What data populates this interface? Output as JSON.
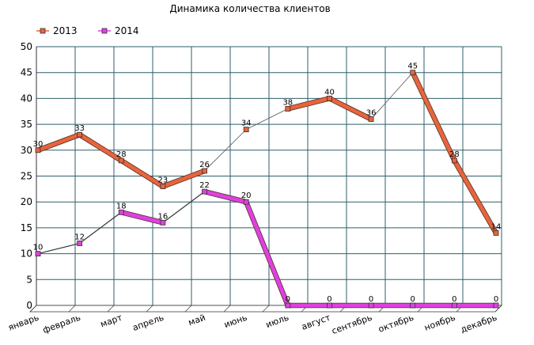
{
  "chart_data": {
    "type": "line",
    "title": "Динамика количества клиентов",
    "xlabel": "",
    "ylabel": "",
    "categories": [
      "январь",
      "февраль",
      "март",
      "апрель",
      "май",
      "июнь",
      "июль",
      "август",
      "сентябрь",
      "октябрь",
      "ноябрь",
      "декабрь"
    ],
    "ylim": [
      0,
      50
    ],
    "yticks": [
      0,
      5,
      10,
      15,
      20,
      25,
      30,
      35,
      40,
      45,
      50
    ],
    "grid": true,
    "legend": "top-left",
    "series": [
      {
        "name": "2013",
        "values": [
          30,
          33,
          28,
          23,
          26,
          34,
          38,
          40,
          36,
          45,
          28,
          14
        ],
        "labels": [
          "30",
          "33",
          "28",
          "23",
          "26",
          "34",
          "38",
          "40",
          "36",
          "45",
          "28",
          "14"
        ],
        "color": "#e8643c",
        "thick": [
          true,
          true,
          true,
          true,
          false,
          false,
          true,
          true,
          false,
          true,
          true
        ]
      },
      {
        "name": "2014",
        "values": [
          10,
          12,
          18,
          16,
          22,
          20,
          0,
          0,
          0,
          0,
          0,
          0
        ],
        "labels": [
          "10",
          "12",
          "18",
          "16",
          "22",
          "20",
          "0",
          "0",
          "0",
          "0",
          "0",
          "0"
        ],
        "color": "#e040e0",
        "thick": [
          false,
          false,
          true,
          false,
          true,
          true,
          true,
          true,
          true,
          true,
          true
        ]
      }
    ]
  }
}
